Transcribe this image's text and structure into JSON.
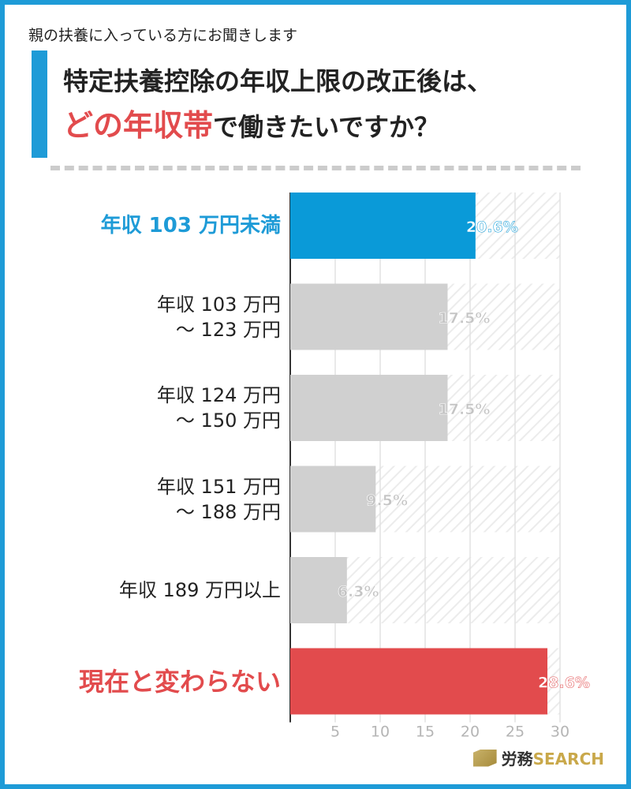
{
  "header": {
    "kicker": "親の扶養に入っている方にお聞きします",
    "title_line1": "特定扶養控除の年収上限の改正後は、",
    "title_line2_accent": "どの年収帯",
    "title_line2_rest": "で働きたいですか？"
  },
  "chart_data": {
    "type": "bar",
    "orientation": "horizontal",
    "categories": [
      "年収 103 万円未満",
      "年収 103 万円〜 123 万円",
      "年収 124 万円〜 150 万円",
      "年収 151 万円〜 188 万円",
      "年収 189 万円以上",
      "現在と変わらない"
    ],
    "category_lines": [
      [
        "年収 103 万円未満"
      ],
      [
        "年収 103 万円",
        "〜 123 万円"
      ],
      [
        "年収 124 万円",
        "〜 150 万円"
      ],
      [
        "年収 151 万円",
        "〜 188 万円"
      ],
      [
        "年収 189 万円以上"
      ],
      [
        "現在と変わらない"
      ]
    ],
    "values": [
      20.6,
      17.5,
      17.5,
      9.5,
      6.3,
      28.6
    ],
    "value_labels": [
      "20.6%",
      "17.5%",
      "17.5%",
      "9.5%",
      "6.3%",
      "28.6%"
    ],
    "bar_colors": [
      "#0a9ad8",
      "#d0d0d0",
      "#d0d0d0",
      "#d0d0d0",
      "#d0d0d0",
      "#e24b4d"
    ],
    "xlim": [
      0,
      30
    ],
    "xticks": [
      "5",
      "10",
      "15",
      "20",
      "25",
      "30"
    ],
    "xtick_values": [
      5,
      10,
      15,
      20,
      25,
      30
    ],
    "grid": true
  },
  "logo": {
    "prefix": "労務",
    "brand": "SEARCH"
  }
}
